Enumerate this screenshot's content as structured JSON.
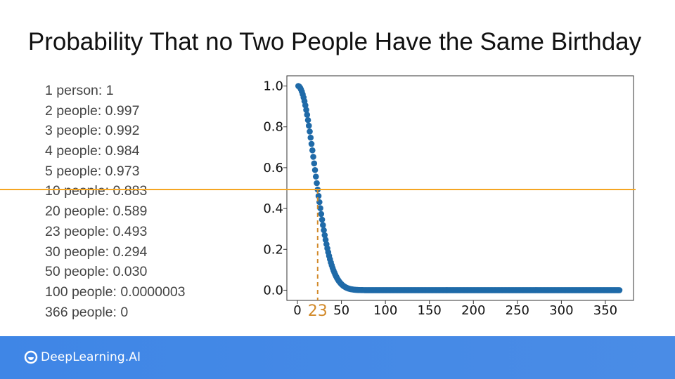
{
  "title": "Probability That no Two People Have the Same Birthday",
  "probability_list": [
    "1 person: 1",
    "2 people: 0.997",
    "3 people: 0.992",
    "4 people: 0.984",
    "5 people: 0.973",
    "10 people: 0.883",
    "20 people: 0.589",
    "23 people: 0.493",
    "30 people: 0.294",
    "50 people: 0.030",
    "100 people: 0.0000003",
    "366 people: 0"
  ],
  "chart_data": {
    "type": "scatter",
    "title": "",
    "xlabel": "",
    "ylabel": "",
    "xlim": [
      -12,
      382
    ],
    "ylim": [
      -0.05,
      1.05
    ],
    "x_ticks": [
      0,
      50,
      100,
      150,
      200,
      250,
      300,
      350
    ],
    "y_ticks": [
      0.0,
      0.2,
      0.4,
      0.6,
      0.8,
      1.0
    ],
    "x_tick_labels": [
      "0",
      "50",
      "100",
      "150",
      "200",
      "250",
      "300",
      "350"
    ],
    "y_tick_labels": [
      "0.0",
      "0.2",
      "0.4",
      "0.6",
      "0.8",
      "1.0"
    ],
    "series": [
      {
        "x_range": [
          1,
          366
        ],
        "formula": "prod_{i=0}^{n-1} (365 - i) / 365",
        "color": "#1f6aa8"
      }
    ],
    "reference_line": {
      "y": 0.493,
      "color": "#f5a623"
    },
    "marker": {
      "x": 23,
      "label": "23",
      "color": "#d28a2a"
    },
    "grid": false
  },
  "footer": {
    "brand": "DeepLearning.AI",
    "background": "#4a8ce6"
  }
}
